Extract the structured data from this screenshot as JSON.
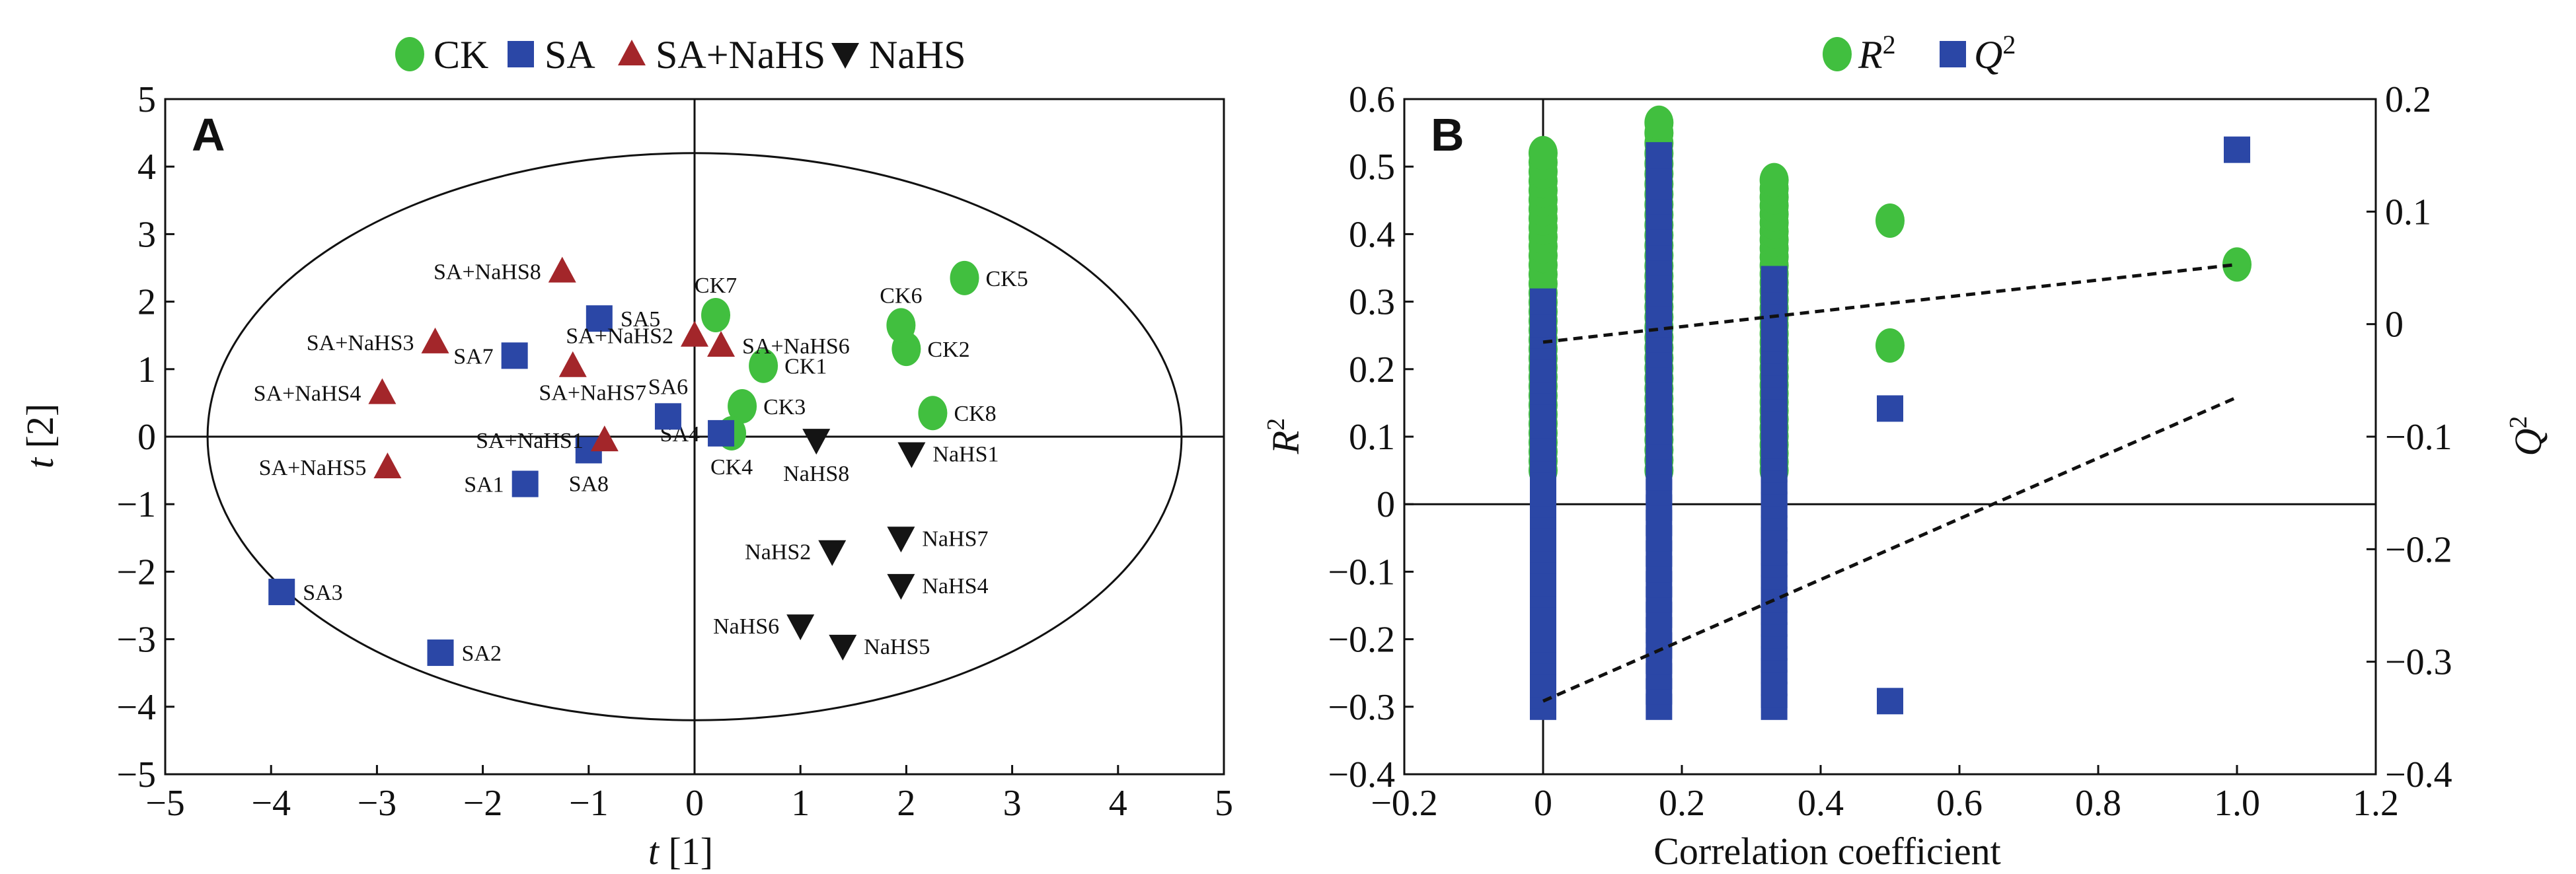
{
  "colors": {
    "CK": "#41bf3f",
    "SA": "#2b47a6",
    "SA+NaHS": "#a3262a",
    "NaHS": "#141414",
    "axis": "#111111"
  },
  "chart_data": [
    {
      "panel": "A",
      "type": "scatter",
      "xlabel_italic": "t",
      "xlabel_rest": " [1]",
      "ylabel_italic": "t",
      "ylabel_rest": " [2]",
      "xlim": [
        -5,
        5
      ],
      "ylim": [
        -5,
        5
      ],
      "xticks": [
        -5,
        -4,
        -3,
        -2,
        -1,
        0,
        1,
        2,
        3,
        4,
        5
      ],
      "yticks": [
        -5,
        -4,
        -3,
        -2,
        -1,
        0,
        1,
        2,
        3,
        4,
        5
      ],
      "xtick_labels": [
        "−5",
        "−4",
        "−3",
        "−2",
        "−1",
        "0",
        "1",
        "2",
        "3",
        "4",
        "5"
      ],
      "ytick_labels": [
        "−5",
        "−4",
        "−3",
        "−2",
        "−1",
        "0",
        "1",
        "2",
        "3",
        "4",
        "5"
      ],
      "ellipse": {
        "cx": 0,
        "cy": 0,
        "rx": 4.6,
        "ry": 4.2
      },
      "legend": [
        {
          "name": "CK",
          "marker": "circle"
        },
        {
          "name": "SA",
          "marker": "square"
        },
        {
          "name": "SA+NaHS",
          "marker": "triangle-up"
        },
        {
          "name": "NaHS",
          "marker": "triangle-down"
        }
      ],
      "series": [
        {
          "name": "CK",
          "marker": "circle",
          "points": [
            {
              "label": "CK1",
              "x": 0.65,
              "y": 1.05,
              "lpos": "right"
            },
            {
              "label": "CK2",
              "x": 2.0,
              "y": 1.3,
              "lpos": "right"
            },
            {
              "label": "CK3",
              "x": 0.45,
              "y": 0.45,
              "lpos": "right"
            },
            {
              "label": "CK4",
              "x": 0.35,
              "y": 0.05,
              "lpos": "below"
            },
            {
              "label": "CK5",
              "x": 2.55,
              "y": 2.35,
              "lpos": "right"
            },
            {
              "label": "CK6",
              "x": 1.95,
              "y": 1.65,
              "lpos": "above"
            },
            {
              "label": "CK7",
              "x": 0.2,
              "y": 1.8,
              "lpos": "above"
            },
            {
              "label": "CK8",
              "x": 2.25,
              "y": 0.35,
              "lpos": "right"
            }
          ]
        },
        {
          "name": "SA",
          "marker": "square",
          "points": [
            {
              "label": "SA1",
              "x": -1.6,
              "y": -0.7,
              "lpos": "left"
            },
            {
              "label": "SA2",
              "x": -2.4,
              "y": -3.2,
              "lpos": "right"
            },
            {
              "label": "SA3",
              "x": -3.9,
              "y": -2.3,
              "lpos": "right"
            },
            {
              "label": "SA4",
              "x": 0.25,
              "y": 0.05,
              "lpos": "left"
            },
            {
              "label": "SA5",
              "x": -0.9,
              "y": 1.75,
              "lpos": "right"
            },
            {
              "label": "SA6",
              "x": -0.25,
              "y": 0.3,
              "lpos": "above"
            },
            {
              "label": "SA7",
              "x": -1.7,
              "y": 1.2,
              "lpos": "left"
            },
            {
              "label": "SA8",
              "x": -1.0,
              "y": -0.2,
              "lpos": "below"
            }
          ]
        },
        {
          "name": "SA+NaHS",
          "marker": "triangle-up",
          "points": [
            {
              "label": "SA+NaHS1",
              "x": -0.85,
              "y": -0.05,
              "lpos": "left"
            },
            {
              "label": "SA+NaHS2",
              "x": 0.0,
              "y": 1.5,
              "lpos": "left"
            },
            {
              "label": "SA+NaHS3",
              "x": -2.45,
              "y": 1.4,
              "lpos": "left"
            },
            {
              "label": "SA+NaHS4",
              "x": -2.95,
              "y": 0.65,
              "lpos": "left"
            },
            {
              "label": "SA+NaHS5",
              "x": -2.9,
              "y": -0.45,
              "lpos": "left"
            },
            {
              "label": "SA+NaHS6",
              "x": 0.25,
              "y": 1.35,
              "lpos": "right"
            },
            {
              "label": "SA+NaHS7",
              "x": -1.15,
              "y": 1.05,
              "lpos": "belowright"
            },
            {
              "label": "SA+NaHS8",
              "x": -1.25,
              "y": 2.45,
              "lpos": "left"
            }
          ]
        },
        {
          "name": "NaHS",
          "marker": "triangle-down",
          "points": [
            {
              "label": "NaHS1",
              "x": 2.05,
              "y": -0.25,
              "lpos": "right"
            },
            {
              "label": "NaHS2",
              "x": 1.3,
              "y": -1.7,
              "lpos": "left"
            },
            {
              "label": "NaHS4",
              "x": 1.95,
              "y": -2.2,
              "lpos": "right"
            },
            {
              "label": "NaHS5",
              "x": 1.4,
              "y": -3.1,
              "lpos": "right"
            },
            {
              "label": "NaHS6",
              "x": 1.0,
              "y": -2.8,
              "lpos": "left"
            },
            {
              "label": "NaHS7",
              "x": 1.95,
              "y": -1.5,
              "lpos": "right"
            },
            {
              "label": "NaHS8",
              "x": 1.15,
              "y": -0.05,
              "lpos": "below"
            }
          ]
        }
      ]
    },
    {
      "panel": "B",
      "type": "scatter",
      "xlabel": "Correlation coefficient",
      "ylabel_left_italic": "R",
      "ylabel_left_sup": "2",
      "ylabel_right_italic": "Q",
      "ylabel_right_sup": "2",
      "xlim": [
        -0.2,
        1.2
      ],
      "ylim_left": [
        -0.4,
        0.6
      ],
      "ylim_right": [
        -0.4,
        0.2
      ],
      "xticks": [
        -0.2,
        0,
        0.2,
        0.4,
        0.6,
        0.8,
        1.0,
        1.2
      ],
      "xtick_labels": [
        "−0.2",
        "0",
        "0.2",
        "0.4",
        "0.6",
        "0.8",
        "1.0",
        "1.2"
      ],
      "yticks_left": [
        -0.4,
        -0.3,
        -0.2,
        -0.1,
        0,
        0.1,
        0.2,
        0.3,
        0.4,
        0.5,
        0.6
      ],
      "ytick_labels_left": [
        "−0.4",
        "−0.3",
        "−0.2",
        "−0.1",
        "0",
        "0.1",
        "0.2",
        "0.3",
        "0.4",
        "0.5",
        "0.6"
      ],
      "yticks_right": [
        -0.4,
        -0.3,
        -0.2,
        -0.1,
        0,
        0.1,
        0.2
      ],
      "ytick_labels_right": [
        "−0.4",
        "−0.3",
        "−0.2",
        "−0.1",
        "0",
        "0.1",
        "0.2"
      ],
      "legend": [
        {
          "name": "R",
          "sup": "2",
          "marker": "circle"
        },
        {
          "name": "Q",
          "sup": "2",
          "marker": "square"
        }
      ],
      "series": [
        {
          "name": "R²",
          "axis": "left",
          "marker": "circle",
          "columns": [
            {
              "x": 0.0,
              "y_from": 0.05,
              "y_to": 0.52
            },
            {
              "x": 0.167,
              "y_from": 0.05,
              "y_to": 0.565
            },
            {
              "x": 0.333,
              "y_from": 0.05,
              "y_to": 0.48
            }
          ],
          "points": [
            {
              "x": 0.5,
              "y": 0.42
            },
            {
              "x": 0.5,
              "y": 0.235
            },
            {
              "x": 1.0,
              "y": 0.355
            }
          ],
          "regression": {
            "x0": 0.0,
            "y0": 0.24,
            "x1": 1.0,
            "y1": 0.355
          }
        },
        {
          "name": "Q²",
          "axis": "right",
          "marker": "square",
          "columns": [
            {
              "x": 0.0,
              "y_from": -0.34,
              "y_to": 0.02
            },
            {
              "x": 0.167,
              "y_from": -0.34,
              "y_to": 0.15
            },
            {
              "x": 0.333,
              "y_from": -0.34,
              "y_to": 0.04
            }
          ],
          "points": [
            {
              "x": 0.5,
              "y": -0.075
            },
            {
              "x": 0.5,
              "y": -0.335
            },
            {
              "x": 1.0,
              "y": 0.155
            }
          ],
          "regression": {
            "x0": 0.0,
            "y0": -0.335,
            "x1": 1.0,
            "y1": -0.065
          }
        }
      ]
    }
  ]
}
